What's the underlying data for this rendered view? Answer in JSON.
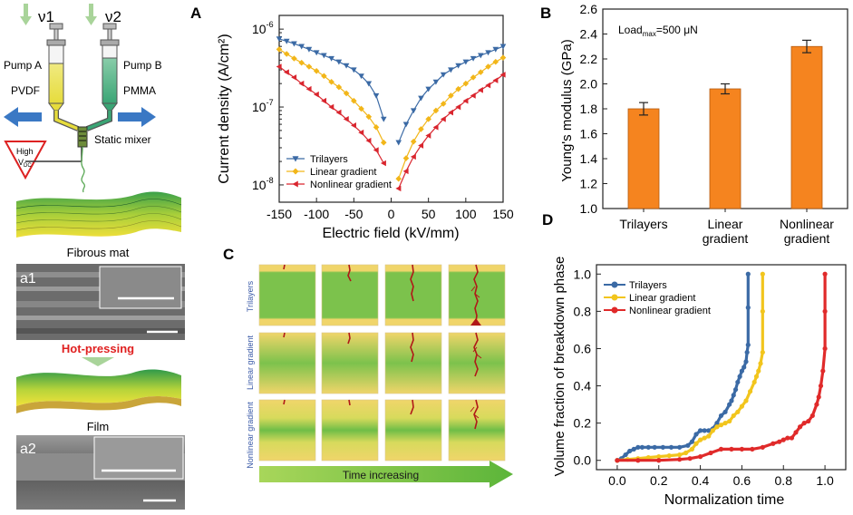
{
  "figure": {
    "panel_labels": {
      "A": "A",
      "B": "B",
      "C": "C",
      "D": "D"
    },
    "schematic": {
      "nu1": "ν1",
      "nu2": "ν2",
      "pump_a": "Pump A",
      "pump_b": "Pump B",
      "pvdf": "PVDF",
      "pmma": "PMMA",
      "static_mixer": "Static mixer",
      "high_voltage": "High",
      "voltage_symbol": "V",
      "voltage_subscript": "DC",
      "fibrous_mat": "Fibrous mat",
      "sem1_label": "a1",
      "hot_pressing": "Hot-pressing",
      "film": "Film",
      "sem2_label": "a2",
      "colors": {
        "pvdf": "#e8e04a",
        "pmma": "#3aa575",
        "arrow": "#3a78c4",
        "hot_pressing": "#e02020"
      }
    },
    "breakdown_sim": {
      "rows": [
        "Trilayers",
        "Linear gradient",
        "Nonlinear gradient"
      ],
      "time_label": "Time increasing",
      "colors": {
        "tree": "#b01818",
        "yellow": "#f0d56a",
        "green": "#6fbd47"
      }
    }
  },
  "chart_data": [
    {
      "panel": "A",
      "type": "line",
      "scale": "semilogy",
      "xlabel": "Electric field (kV/mm)",
      "ylabel": "Current density (A/cm²)",
      "xlim": [
        -150,
        150
      ],
      "ylim": [
        6e-09,
        1.5e-06
      ],
      "xticks": [
        "-150",
        "-100",
        "-50",
        "0",
        "50",
        "100",
        "150"
      ],
      "yticks": [
        {
          "value": 1e-08,
          "base": "10",
          "exp": "-8"
        },
        {
          "value": 1e-07,
          "base": "10",
          "exp": "-7"
        },
        {
          "value": 1e-06,
          "base": "10",
          "exp": "-6"
        }
      ],
      "legend_position": "bottom-left",
      "series": [
        {
          "name": "Trilayers",
          "color": "#3b6aa5",
          "marker": "triangle-down",
          "x": [
            -150,
            -140,
            -130,
            -120,
            -110,
            -100,
            -90,
            -80,
            -70,
            -60,
            -50,
            -40,
            -30,
            -20,
            -10,
            10,
            20,
            30,
            40,
            50,
            60,
            70,
            80,
            90,
            100,
            110,
            120,
            130,
            140,
            150
          ],
          "y": [
            7.5e-07,
            7e-07,
            6.5e-07,
            6e-07,
            5.5e-07,
            5e-07,
            4.6e-07,
            4.2e-07,
            3.8e-07,
            3.4e-07,
            3e-07,
            2.5e-07,
            2e-07,
            1.4e-07,
            7e-08,
            3.5e-08,
            6e-08,
            9e-08,
            1.3e-07,
            1.7e-07,
            2.1e-07,
            2.6e-07,
            3e-07,
            3.4e-07,
            3.8e-07,
            4.2e-07,
            4.6e-07,
            5e-07,
            5.5e-07,
            6e-07
          ]
        },
        {
          "name": "Linear gradient",
          "color": "#f2b619",
          "marker": "diamond",
          "x": [
            -150,
            -140,
            -130,
            -120,
            -110,
            -100,
            -90,
            -80,
            -70,
            -60,
            -50,
            -40,
            -30,
            -20,
            -10,
            10,
            20,
            30,
            40,
            50,
            60,
            70,
            80,
            90,
            100,
            110,
            120,
            130,
            140,
            150
          ],
          "y": [
            5.5e-07,
            4.8e-07,
            4.2e-07,
            3.7e-07,
            3.3e-07,
            2.9e-07,
            2.5e-07,
            2.1e-07,
            1.8e-07,
            1.5e-07,
            1.2e-07,
            9.5e-08,
            7.5e-08,
            5.5e-08,
            3.5e-08,
            1.2e-08,
            2.2e-08,
            3.6e-08,
            5.2e-08,
            7e-08,
            9e-08,
            1.1e-07,
            1.4e-07,
            1.7e-07,
            2e-07,
            2.4e-07,
            2.8e-07,
            3.3e-07,
            3.8e-07,
            4.3e-07
          ]
        },
        {
          "name": "Nonlinear gradient",
          "color": "#d9252e",
          "marker": "triangle-left",
          "x": [
            -150,
            -140,
            -130,
            -120,
            -110,
            -100,
            -90,
            -80,
            -70,
            -60,
            -50,
            -40,
            -30,
            -20,
            -10,
            10,
            20,
            30,
            40,
            50,
            60,
            70,
            80,
            90,
            100,
            110,
            120,
            130,
            140,
            150
          ],
          "y": [
            3.3e-07,
            2.8e-07,
            2.4e-07,
            2e-07,
            1.7e-07,
            1.45e-07,
            1.2e-07,
            1e-07,
            8.5e-08,
            7e-08,
            5.8e-08,
            4.7e-08,
            3.7e-08,
            2.8e-08,
            1.9e-08,
            9e-09,
            1.5e-08,
            2.3e-08,
            3.2e-08,
            4.3e-08,
            5.5e-08,
            7e-08,
            8.5e-08,
            1e-07,
            1.2e-07,
            1.4e-07,
            1.65e-07,
            1.9e-07,
            2.2e-07,
            2.6e-07
          ]
        }
      ]
    },
    {
      "panel": "B",
      "type": "bar",
      "categories": [
        [
          "Trilayers"
        ],
        [
          "Linear",
          "gradient"
        ],
        [
          "Nonlinear",
          "gradient"
        ]
      ],
      "values": [
        1.8,
        1.96,
        2.3
      ],
      "errors": [
        0.05,
        0.04,
        0.05
      ],
      "color": "#f5841f",
      "ylabel": "Young's modulus (GPa)",
      "ylim": [
        1.0,
        2.6
      ],
      "yticks": [
        "1.0",
        "1.2",
        "1.4",
        "1.6",
        "1.8",
        "2.0",
        "2.2",
        "2.4",
        "2.6"
      ],
      "annotation": {
        "main": "Load",
        "sub": "max",
        "rest": "=500 μN"
      }
    },
    {
      "panel": "D",
      "type": "line",
      "xlabel": "Normalization time",
      "ylabel": "Volume fraction of breakdown phase",
      "xlim": [
        -0.1,
        1.1
      ],
      "ylim": [
        -0.05,
        1.05
      ],
      "xticks": [
        "0.0",
        "0.2",
        "0.4",
        "0.6",
        "0.8",
        "1.0"
      ],
      "yticks": [
        "0.0",
        "0.2",
        "0.4",
        "0.6",
        "0.8",
        "1.0"
      ],
      "legend_position": "top-left",
      "series": [
        {
          "name": "Trilayers",
          "color": "#3b6aa5",
          "x": [
            0.0,
            0.02,
            0.04,
            0.06,
            0.08,
            0.1,
            0.12,
            0.15,
            0.18,
            0.22,
            0.26,
            0.3,
            0.34,
            0.36,
            0.38,
            0.4,
            0.42,
            0.44,
            0.46,
            0.48,
            0.5,
            0.52,
            0.54,
            0.55,
            0.56,
            0.57,
            0.58,
            0.59,
            0.6,
            0.61,
            0.62,
            0.625,
            0.63,
            0.63,
            0.63
          ],
          "y": [
            0.0,
            0.01,
            0.03,
            0.05,
            0.06,
            0.07,
            0.07,
            0.07,
            0.07,
            0.07,
            0.07,
            0.07,
            0.08,
            0.1,
            0.14,
            0.16,
            0.16,
            0.16,
            0.17,
            0.2,
            0.24,
            0.26,
            0.3,
            0.32,
            0.35,
            0.38,
            0.42,
            0.45,
            0.48,
            0.5,
            0.53,
            0.58,
            0.62,
            0.82,
            1.0
          ]
        },
        {
          "name": "Linear gradient",
          "color": "#f2c51d",
          "x": [
            0.0,
            0.05,
            0.1,
            0.15,
            0.2,
            0.25,
            0.3,
            0.33,
            0.36,
            0.38,
            0.4,
            0.42,
            0.44,
            0.46,
            0.48,
            0.5,
            0.52,
            0.54,
            0.56,
            0.58,
            0.6,
            0.62,
            0.64,
            0.66,
            0.67,
            0.68,
            0.69,
            0.7,
            0.7,
            0.7
          ],
          "y": [
            0.0,
            0.005,
            0.01,
            0.015,
            0.02,
            0.025,
            0.03,
            0.04,
            0.06,
            0.09,
            0.11,
            0.12,
            0.13,
            0.16,
            0.18,
            0.19,
            0.2,
            0.21,
            0.24,
            0.26,
            0.29,
            0.32,
            0.37,
            0.42,
            0.45,
            0.48,
            0.52,
            0.58,
            0.8,
            1.0
          ]
        },
        {
          "name": "Nonlinear gradient",
          "color": "#e02a2a",
          "x": [
            0.0,
            0.1,
            0.2,
            0.3,
            0.35,
            0.4,
            0.45,
            0.5,
            0.55,
            0.6,
            0.65,
            0.7,
            0.75,
            0.78,
            0.8,
            0.82,
            0.84,
            0.86,
            0.88,
            0.9,
            0.92,
            0.94,
            0.96,
            0.97,
            0.98,
            0.99,
            1.0,
            1.0,
            1.0
          ],
          "y": [
            0.0,
            0.0,
            0.0,
            0.005,
            0.01,
            0.02,
            0.04,
            0.06,
            0.06,
            0.06,
            0.06,
            0.07,
            0.09,
            0.1,
            0.11,
            0.12,
            0.12,
            0.15,
            0.18,
            0.2,
            0.21,
            0.24,
            0.3,
            0.34,
            0.4,
            0.48,
            0.6,
            0.8,
            1.0
          ]
        }
      ]
    }
  ]
}
